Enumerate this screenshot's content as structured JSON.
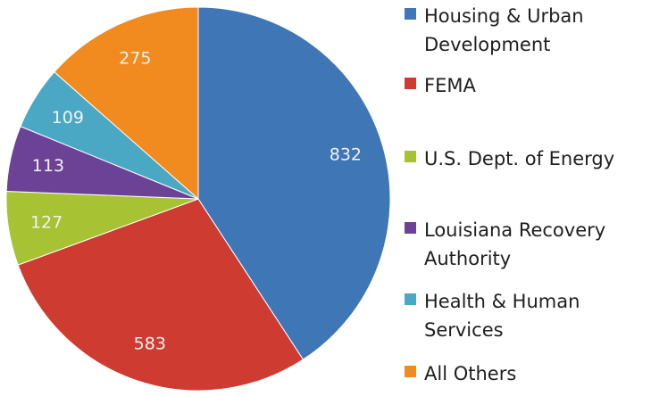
{
  "chart_data": {
    "type": "pie",
    "categories": [
      "Housing & Urban Development",
      "FEMA",
      "U.S. Dept. of Energy",
      "Louisiana Recovery Authority",
      "Health & Human Services",
      "All Others"
    ],
    "values": [
      832,
      583,
      127,
      113,
      109,
      275
    ],
    "colors": [
      "#3f76b6",
      "#cd3b31",
      "#a7c232",
      "#6b4295",
      "#4ba8c5",
      "#f18a1f"
    ],
    "legend": "right"
  }
}
